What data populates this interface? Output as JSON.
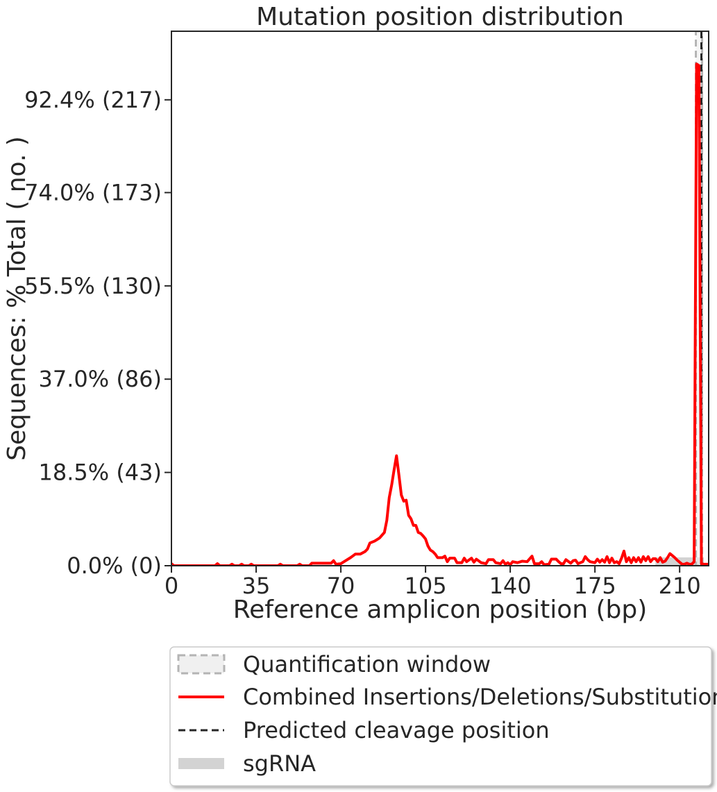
{
  "chart_data": {
    "type": "line",
    "title": "Mutation position distribution",
    "xlabel": "Reference amplicon position (bp)",
    "ylabel": "Sequences: % Total ( no. )",
    "xlim": [
      0,
      222
    ],
    "ylim": [
      0,
      106
    ],
    "x_ticks": [
      0,
      35,
      70,
      105,
      140,
      175,
      210
    ],
    "y_ticks": [
      {
        "value": 0.0,
        "label": "0.0% (0)"
      },
      {
        "value": 18.5,
        "label": "18.5% (43)"
      },
      {
        "value": 37.0,
        "label": "37.0% (86)"
      },
      {
        "value": 55.5,
        "label": "55.5% (130)"
      },
      {
        "value": 74.0,
        "label": "74.0% (173)"
      },
      {
        "value": 92.4,
        "label": "92.4% (217)"
      }
    ],
    "quantification_window": {
      "x_start": 217,
      "x_end": 219
    },
    "predicted_cleavage_position": 219,
    "sgrna": {
      "x_start": 200,
      "x_end": 220
    },
    "series": [
      {
        "name": "Combined Insertions/Deletions/Substitutions",
        "color": "#ff0000",
        "points": [
          [
            0,
            0.4
          ],
          [
            1,
            0
          ],
          [
            18,
            0
          ],
          [
            19,
            0.4
          ],
          [
            20,
            0
          ],
          [
            24,
            0
          ],
          [
            25,
            0.3
          ],
          [
            26,
            0
          ],
          [
            28,
            0
          ],
          [
            29,
            0.3
          ],
          [
            30,
            0
          ],
          [
            32,
            0
          ],
          [
            33,
            0.3
          ],
          [
            34,
            0
          ],
          [
            44,
            0
          ],
          [
            45,
            0.3
          ],
          [
            46,
            0
          ],
          [
            52,
            0
          ],
          [
            53,
            0.3
          ],
          [
            54,
            0
          ],
          [
            57,
            0
          ],
          [
            58,
            0.5
          ],
          [
            66,
            0.5
          ],
          [
            67,
            1
          ],
          [
            68,
            0.3
          ],
          [
            70,
            0.4
          ],
          [
            72,
            1
          ],
          [
            74,
            1.6
          ],
          [
            76,
            2.3
          ],
          [
            78,
            2.3
          ],
          [
            80,
            2.8
          ],
          [
            81,
            3.3
          ],
          [
            82,
            4.5
          ],
          [
            84,
            4.9
          ],
          [
            86,
            5.5
          ],
          [
            88,
            6.6
          ],
          [
            89,
            9
          ],
          [
            90,
            13.5
          ],
          [
            91,
            16
          ],
          [
            92,
            19
          ],
          [
            93,
            21.8
          ],
          [
            94,
            18
          ],
          [
            95,
            14
          ],
          [
            96,
            12.8
          ],
          [
            97,
            13
          ],
          [
            98,
            10
          ],
          [
            99,
            9.3
          ],
          [
            100,
            8
          ],
          [
            101,
            8
          ],
          [
            102,
            6.6
          ],
          [
            103,
            6.4
          ],
          [
            104,
            5.9
          ],
          [
            105,
            5.3
          ],
          [
            106,
            3.9
          ],
          [
            107,
            3.1
          ],
          [
            108,
            2.8
          ],
          [
            109,
            2.3
          ],
          [
            110,
            1.6
          ],
          [
            112,
            1.6
          ],
          [
            113,
            1.9
          ],
          [
            114,
            0.8
          ],
          [
            115,
            1.5
          ],
          [
            117,
            1.5
          ],
          [
            118,
            0.6
          ],
          [
            120,
            0.6
          ],
          [
            121,
            1.5
          ],
          [
            122,
            0.8
          ],
          [
            124,
            1.5
          ],
          [
            125,
            0.7
          ],
          [
            126,
            1.3
          ],
          [
            128,
            0.6
          ],
          [
            130,
            0.4
          ],
          [
            131,
            1.2
          ],
          [
            133,
            1.2
          ],
          [
            134,
            0.6
          ],
          [
            136,
            0.4
          ],
          [
            137,
            1
          ],
          [
            138,
            0.3
          ],
          [
            139,
            0.6
          ],
          [
            140,
            0.2
          ],
          [
            141,
            0.8
          ],
          [
            143,
            0.6
          ],
          [
            145,
            0.9
          ],
          [
            147,
            0.8
          ],
          [
            149,
            1.9
          ],
          [
            150,
            0.4
          ],
          [
            152,
            0.4
          ],
          [
            153,
            0.8
          ],
          [
            154,
            0.2
          ],
          [
            156,
            0.3
          ],
          [
            157,
            1.3
          ],
          [
            159,
            1.3
          ],
          [
            160,
            0.8
          ],
          [
            161,
            0.4
          ],
          [
            162,
            0.4
          ],
          [
            163,
            1.2
          ],
          [
            165,
            0.5
          ],
          [
            166,
            1
          ],
          [
            167,
            1.1
          ],
          [
            168,
            0.4
          ],
          [
            170,
            0.8
          ],
          [
            171,
            1.8
          ],
          [
            172,
            1.2
          ],
          [
            173,
            0.8
          ],
          [
            175,
            0.6
          ],
          [
            176,
            1.3
          ],
          [
            177,
            0.7
          ],
          [
            178,
            1.2
          ],
          [
            179,
            0.7
          ],
          [
            180,
            1.8
          ],
          [
            181,
            0.6
          ],
          [
            182,
            1.5
          ],
          [
            183,
            0.6
          ],
          [
            184,
            0.8
          ],
          [
            185,
            0.4
          ],
          [
            186,
            1.5
          ],
          [
            187,
            2.9
          ],
          [
            188,
            0.8
          ],
          [
            189,
            1.6
          ],
          [
            190,
            0.6
          ],
          [
            191,
            1.6
          ],
          [
            192,
            0.8
          ],
          [
            193,
            1.6
          ],
          [
            194,
            0.7
          ],
          [
            195,
            1.8
          ],
          [
            196,
            1
          ],
          [
            197,
            1.8
          ],
          [
            198,
            0.8
          ],
          [
            199,
            1.4
          ],
          [
            200,
            1.4
          ],
          [
            201,
            0.8
          ],
          [
            202,
            1.6
          ],
          [
            203,
            0.7
          ],
          [
            204,
            0.9
          ],
          [
            205,
            1.6
          ],
          [
            206,
            2.4
          ],
          [
            207,
            2
          ],
          [
            208,
            1.6
          ],
          [
            209,
            1.1
          ],
          [
            210,
            0.7
          ],
          [
            211,
            0.3
          ],
          [
            212,
            0.3
          ],
          [
            213,
            0.5
          ],
          [
            214,
            0.3
          ],
          [
            215,
            0.3
          ],
          [
            216,
            0.8
          ],
          [
            217,
            99.5
          ],
          [
            218,
            99.2
          ],
          [
            219,
            0.4
          ],
          [
            220,
            0.3
          ],
          [
            221,
            0.3
          ],
          [
            222,
            0.3
          ]
        ]
      }
    ],
    "legend": {
      "placement": "below",
      "entries": [
        {
          "label": "Quantification window",
          "style": "dashed-box",
          "color": "#b4b4b4"
        },
        {
          "label": "Combined Insertions/Deletions/Substitutions",
          "style": "line",
          "color": "#ff0000"
        },
        {
          "label": "Predicted cleavage position",
          "style": "dashed-line",
          "color": "#262626"
        },
        {
          "label": "sgRNA",
          "style": "thick-band",
          "color": "#d3d3d3"
        }
      ]
    }
  }
}
